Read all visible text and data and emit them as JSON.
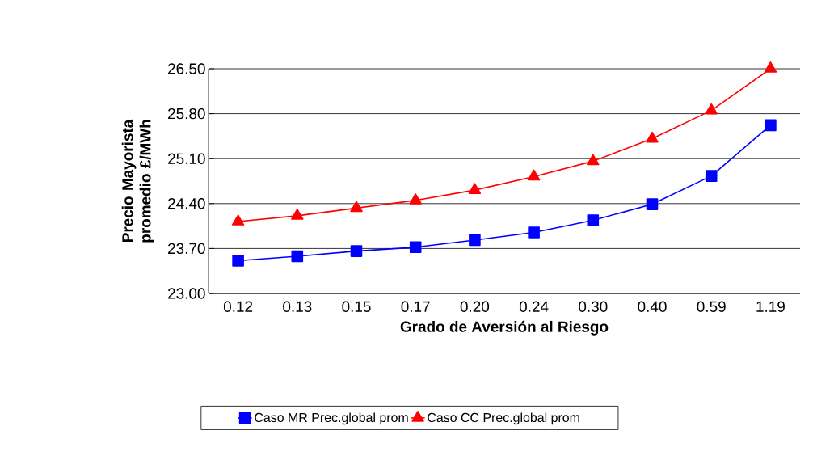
{
  "chart_data": {
    "type": "line",
    "xlabel": "Grado de Aversión al Riesgo",
    "ylabel": "Precio Mayorista promedio £/MWh",
    "categories": [
      "0.12",
      "0.13",
      "0.15",
      "0.17",
      "0.20",
      "0.24",
      "0.30",
      "0.40",
      "0.59",
      "1.19"
    ],
    "series": [
      {
        "name": "Caso MR   Prec.global prom",
        "color": "#0000ff",
        "marker": "square",
        "values": [
          23.51,
          23.58,
          23.66,
          23.72,
          23.83,
          23.95,
          24.14,
          24.39,
          24.83,
          25.62
        ]
      },
      {
        "name": "Caso CC  Prec.global prom",
        "color": "#ff0000",
        "marker": "triangle",
        "values": [
          24.12,
          24.21,
          24.33,
          24.45,
          24.61,
          24.82,
          25.06,
          25.41,
          25.85,
          26.5
        ]
      }
    ],
    "ylim": [
      23.0,
      26.5
    ],
    "yticks": [
      {
        "value": 23.0,
        "label": "23.00"
      },
      {
        "value": 23.7,
        "label": "23.70"
      },
      {
        "value": 24.4,
        "label": "24.40"
      },
      {
        "value": 25.1,
        "label": "25.10"
      },
      {
        "value": 25.8,
        "label": "25.80"
      },
      {
        "value": 26.5,
        "label": "26.50"
      }
    ],
    "grid": "y",
    "legend": "bottom",
    "line_style": "solid"
  }
}
